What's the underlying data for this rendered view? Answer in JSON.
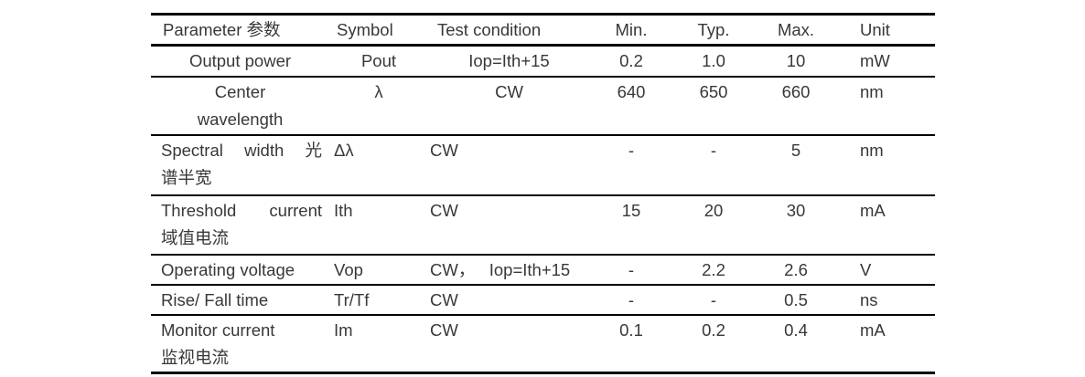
{
  "table": {
    "headers": {
      "parameter": "Parameter 参数",
      "symbol": "Symbol",
      "condition": "Test condition",
      "min": "Min.",
      "typ": "Typ.",
      "max": "Max.",
      "unit": "Unit"
    },
    "rows": [
      {
        "param1": "Output power",
        "param2": "",
        "symbol": "Pout",
        "condition": "Iop=Ith+15",
        "min": "0.2",
        "typ": "1.0",
        "max": "10",
        "unit": "mW"
      },
      {
        "param1": "Center",
        "param2": "wavelength",
        "symbol": "λ",
        "condition": "CW",
        "min": "640",
        "typ": "650",
        "max": "660",
        "unit": "nm"
      },
      {
        "param1": "Spectral width 光",
        "param2": "谱半宽",
        "symbol": "Δλ",
        "condition": "CW",
        "min": "-",
        "typ": "-",
        "max": "5",
        "unit": "nm"
      },
      {
        "param1": "Threshold current",
        "param2": "域值电流",
        "symbol": "Ith",
        "condition": "CW",
        "min": "15",
        "typ": "20",
        "max": "30",
        "unit": "mA"
      },
      {
        "param1": "Operating voltage",
        "param2": "",
        "symbol": "Vop",
        "condition": "CW，   Iop=Ith+15",
        "min": "-",
        "typ": "2.2",
        "max": "2.6",
        "unit": "V"
      },
      {
        "param1": "Rise/ Fall time",
        "param2": "",
        "symbol": "Tr/Tf",
        "condition": "CW",
        "min": "-",
        "typ": "-",
        "max": "0.5",
        "unit": "ns"
      },
      {
        "param1": "Monitor current",
        "param2": "监视电流",
        "symbol": "Im",
        "condition": "CW",
        "min": "0.1",
        "typ": "0.2",
        "max": "0.4",
        "unit": "mA"
      }
    ],
    "colors": {
      "text": "#383838",
      "rule": "#000000",
      "background": "#ffffff"
    }
  }
}
